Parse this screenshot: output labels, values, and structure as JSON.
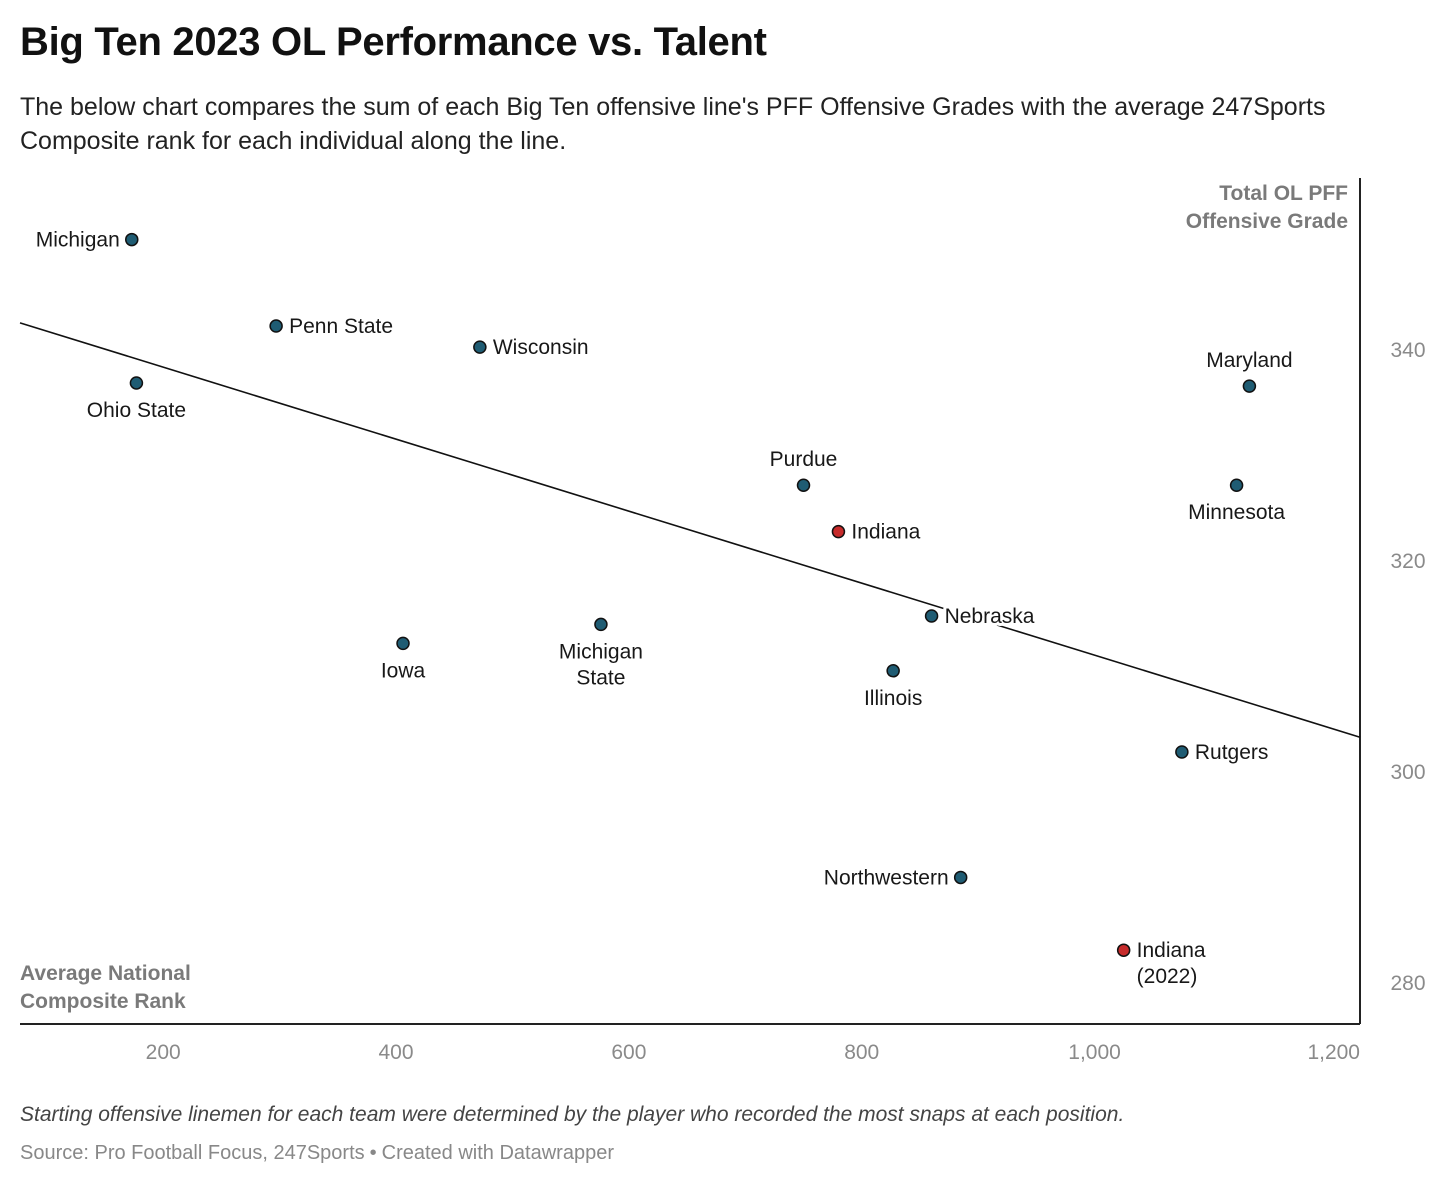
{
  "title": "Big Ten 2023 OL Performance vs. Talent",
  "subtitle": "The below chart compares the sum of each Big Ten offensive line's PFF Offensive Grades with the average 247Sports Composite rank for each individual along the line.",
  "notes": "Starting offensive linemen for each team were determined by the player who recorded the most snaps at each position.",
  "source": {
    "text": "Source: Pro Football Focus, 247Sports",
    "separator": "•",
    "credit": "Created with Datawrapper"
  },
  "colors": {
    "default_point": "#1f5c73",
    "highlight_point": "#c62b2b",
    "point_stroke": "#111111",
    "trendline": "#111111",
    "axis": "#222222",
    "tick_text": "#8a8a8a",
    "axis_title": "#7a7a7a"
  },
  "chart_data": {
    "type": "scatter",
    "title": "Big Ten 2023 OL Performance vs. Talent",
    "xlabel": "Average National Composite Rank",
    "ylabel": "Total OL PFF Offensive Grade",
    "xlim": [
      77,
      1228
    ],
    "ylim": [
      276,
      357
    ],
    "x_ticks": [
      200,
      400,
      600,
      800,
      1000,
      1200
    ],
    "x_tick_labels": [
      "200",
      "400",
      "600",
      "800",
      "1,000",
      "1,200"
    ],
    "y_ticks": [
      280,
      300,
      320,
      340
    ],
    "y_tick_labels": [
      "280",
      "300",
      "320",
      "340"
    ],
    "y_axis_position": "right",
    "grid": false,
    "trendline": {
      "x": [
        77,
        1228
      ],
      "y": [
        342.5,
        303.2
      ]
    },
    "points": [
      {
        "name": "Michigan",
        "x": 173,
        "y": 350.4,
        "highlight": false
      },
      {
        "name": "Penn State",
        "x": 297,
        "y": 342.2,
        "highlight": false
      },
      {
        "name": "Wisconsin",
        "x": 472,
        "y": 340.2,
        "highlight": false
      },
      {
        "name": "Ohio State",
        "x": 177,
        "y": 336.8,
        "highlight": false
      },
      {
        "name": "Maryland",
        "x": 1133,
        "y": 336.5,
        "highlight": false
      },
      {
        "name": "Purdue",
        "x": 750,
        "y": 327.1,
        "highlight": false
      },
      {
        "name": "Minnesota",
        "x": 1122,
        "y": 327.1,
        "highlight": false
      },
      {
        "name": "Indiana",
        "x": 780,
        "y": 322.7,
        "highlight": true
      },
      {
        "name": "Nebraska",
        "x": 860,
        "y": 314.7,
        "highlight": false
      },
      {
        "name": "Michigan State",
        "x": 576,
        "y": 313.9,
        "highlight": false
      },
      {
        "name": "Iowa",
        "x": 406,
        "y": 312.1,
        "highlight": false
      },
      {
        "name": "Illinois",
        "x": 827,
        "y": 309.5,
        "highlight": false
      },
      {
        "name": "Rutgers",
        "x": 1075,
        "y": 301.8,
        "highlight": false
      },
      {
        "name": "Northwestern",
        "x": 885,
        "y": 289.9,
        "highlight": false
      },
      {
        "name": "Indiana (2022)",
        "x": 1025,
        "y": 283.0,
        "highlight": true
      }
    ]
  }
}
